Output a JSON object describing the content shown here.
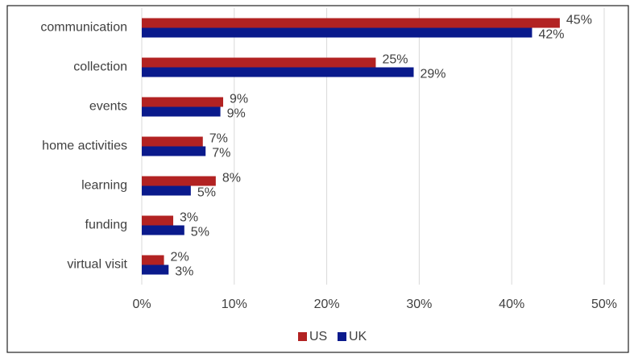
{
  "chart_data": {
    "type": "bar",
    "orientation": "horizontal",
    "categories": [
      "communication",
      "collection",
      "events",
      "home activities",
      "learning",
      "funding",
      "virtual visit"
    ],
    "series": [
      {
        "name": "US",
        "color": "#b22222",
        "values": [
          45.2,
          25.3,
          8.8,
          6.6,
          8.0,
          3.4,
          2.4
        ],
        "value_labels": [
          "45%",
          "25%",
          "9%",
          "7%",
          "8%",
          "3%",
          "2%"
        ]
      },
      {
        "name": "UK",
        "color": "#0a1a8c",
        "values": [
          42.2,
          29.4,
          8.5,
          6.9,
          5.3,
          4.6,
          2.9
        ],
        "value_labels": [
          "42%",
          "29%",
          "9%",
          "7%",
          "5%",
          "5%",
          "3%"
        ]
      }
    ],
    "xlim": [
      0,
      50
    ],
    "xticks": [
      {
        "value": 0,
        "label": "0%"
      },
      {
        "value": 10,
        "label": "10%"
      },
      {
        "value": 20,
        "label": "20%"
      },
      {
        "value": 30,
        "label": "30%"
      },
      {
        "value": 40,
        "label": "40%"
      },
      {
        "value": 50,
        "label": "50%"
      }
    ],
    "grid": true,
    "legend": "bottom"
  }
}
